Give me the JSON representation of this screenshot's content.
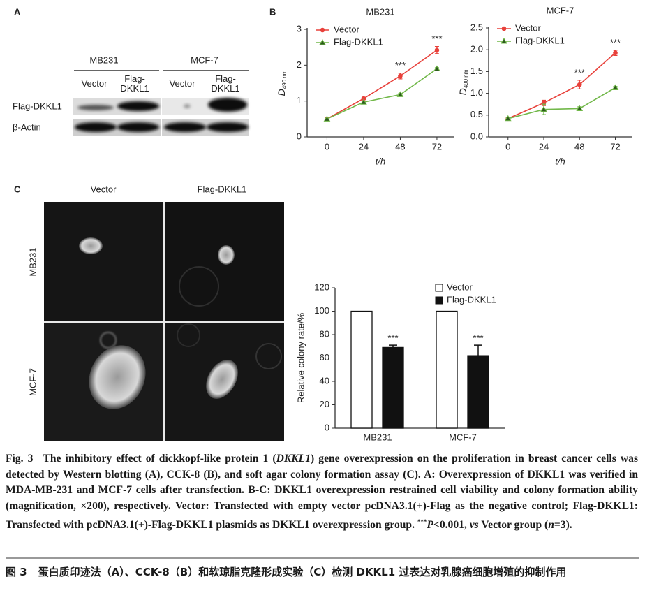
{
  "panels": [
    "A",
    "B",
    "C"
  ],
  "blot": {
    "groups": [
      "MB231",
      "MCF-7"
    ],
    "lanes": [
      "Vector",
      "Flag-DKKL1",
      "Vector",
      "Flag-DKKL1"
    ],
    "rows": [
      "Flag-DKKL1",
      "β-Actin"
    ]
  },
  "colony": {
    "columns": [
      "Vector",
      "Flag-DKKL1"
    ],
    "rows": [
      "MB231",
      "MCF-7"
    ]
  },
  "chart_data": [
    {
      "type": "line",
      "title": "MB231",
      "ylabel": "D",
      "ylabel_sub": "490 nm",
      "xlabel": "t/h",
      "x": [
        0,
        24,
        48,
        72
      ],
      "xlim": [
        -13,
        83
      ],
      "xticks": [
        0,
        24,
        48,
        72
      ],
      "ylim": [
        0,
        3
      ],
      "yticks": [
        0,
        1,
        2,
        3
      ],
      "series": [
        {
          "name": "Vector",
          "color": "#e8403a",
          "marker": "circle",
          "values": [
            0.5,
            1.07,
            1.7,
            2.42
          ],
          "errors": [
            0.02,
            0.03,
            0.08,
            0.1
          ]
        },
        {
          "name": "Flag-DKKL1",
          "color": "#72b84a",
          "marker": "triangle",
          "values": [
            0.5,
            0.97,
            1.18,
            1.9
          ],
          "errors": [
            0.02,
            0.02,
            0.03,
            0.03
          ]
        }
      ],
      "annotations": [
        {
          "text": "***",
          "x": 48
        },
        {
          "text": "***",
          "x": 72
        }
      ]
    },
    {
      "type": "line",
      "title": "MCF-7",
      "ylabel": "D",
      "ylabel_sub": "490 nm",
      "xlabel": "t/h",
      "x": [
        0,
        24,
        48,
        72
      ],
      "xlim": [
        -13,
        83
      ],
      "xticks": [
        0,
        24,
        48,
        72
      ],
      "ylim": [
        0,
        2.5
      ],
      "yticks": [
        {
          "value": 0,
          "label": "0.0"
        },
        0.5,
        {
          "value": 1,
          "label": "1.0"
        },
        1.5,
        {
          "value": 2,
          "label": "2.0"
        },
        2.5
      ],
      "series": [
        {
          "name": "Vector",
          "color": "#e8403a",
          "marker": "circle",
          "values": [
            0.42,
            0.78,
            1.2,
            1.93
          ],
          "errors": [
            0.02,
            0.06,
            0.1,
            0.06
          ]
        },
        {
          "name": "Flag-DKKL1",
          "color": "#72b84a",
          "marker": "triangle",
          "values": [
            0.42,
            0.63,
            0.65,
            1.13
          ],
          "errors": [
            0.02,
            0.12,
            0.04,
            0.03
          ]
        }
      ],
      "annotations": [
        {
          "text": "***",
          "x": 48
        },
        {
          "text": "***",
          "x": 72
        }
      ]
    },
    {
      "type": "bar",
      "ylabel": "Relative colony rate/%",
      "categories": [
        "MB231",
        "MCF-7"
      ],
      "ylim": [
        0,
        120
      ],
      "yticks": [
        0,
        20,
        40,
        60,
        80,
        100,
        120
      ],
      "series": [
        {
          "name": "Vector",
          "color": "#ffffff",
          "values": [
            100,
            100
          ]
        },
        {
          "name": "Flag-DKKL1",
          "color": "#111111",
          "values": [
            69,
            62
          ],
          "errors": [
            2,
            9
          ]
        }
      ],
      "annotations": [
        {
          "text": "***",
          "series": 1,
          "index": 0
        },
        {
          "text": "***",
          "series": 1,
          "index": 1
        }
      ]
    }
  ],
  "caption": {
    "en": [
      "Fig. 3",
      "The inhibitory effect of dickkopf-like protein 1 (",
      "DKKL1",
      ") gene overexpression on the proliferation in breast cancer cells was detected by Western blotting (A), CCK-8 (B), and soft agar colony formation assay (C). A: Overexpression of DKKL1 was verified in MDA-MB-231 and MCF-7 cells after transfection. B-C: DKKL1 overexpression restrained cell viability and colony formation ability (magnification, ×200), respectively. Vector: Transfected with empty vector pcDNA3.1(+)-Flag as the negative control; Flag-DKKL1: Transfected with pcDNA3.1(+)-Flag-DKKL1 plasmids as DKKL1 overexpression group. ",
      "***",
      "P",
      "<0.001, ",
      "vs",
      " Vector group (",
      "n",
      "=3)."
    ],
    "zh": [
      "图 3",
      "蛋白质印迹法（A）、CCK-8（B）和软琼脂克隆形成实验（C）检测 DKKL1 过表达对乳腺癌细胞增殖的抑制作用"
    ]
  }
}
